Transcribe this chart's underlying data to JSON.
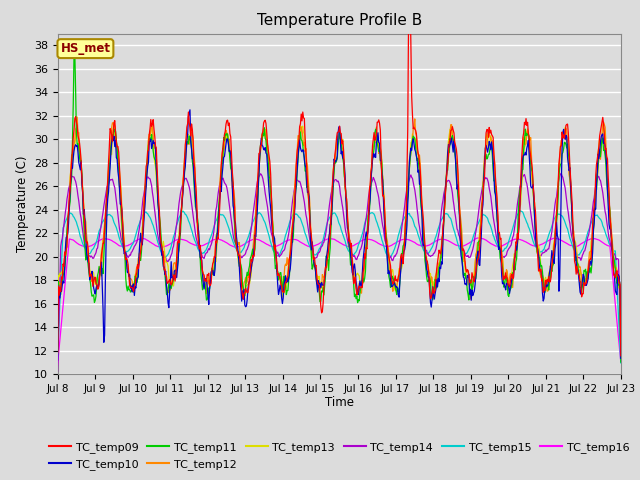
{
  "title": "Temperature Profile B",
  "xlabel": "Time",
  "ylabel": "Temperature (C)",
  "ylim": [
    10,
    39
  ],
  "yticks": [
    10,
    12,
    14,
    16,
    18,
    20,
    22,
    24,
    26,
    28,
    30,
    32,
    34,
    36,
    38
  ],
  "annotation": "HS_met",
  "annotation_color": "#8B0000",
  "annotation_bg": "#FFFF99",
  "annotation_edge": "#AA8800",
  "series_colors": {
    "TC_temp09": "#FF0000",
    "TC_temp10": "#0000CC",
    "TC_temp11": "#00CC00",
    "TC_temp12": "#FF8800",
    "TC_temp13": "#DDDD00",
    "TC_temp14": "#AA00CC",
    "TC_temp15": "#00CCCC",
    "TC_temp16": "#FF00FF"
  },
  "bg_color": "#DCDCDC",
  "plot_bg": "#DCDCDC",
  "grid_color": "#FFFFFF",
  "title_fontsize": 11,
  "figsize": [
    6.4,
    4.8
  ],
  "dpi": 100
}
